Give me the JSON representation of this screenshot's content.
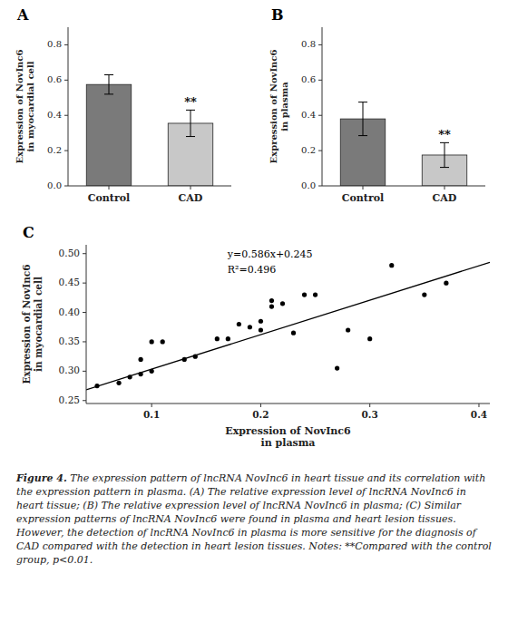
{
  "chart_data": [
    {
      "type": "bar",
      "title": "A",
      "categories": [
        "Control",
        "CAD"
      ],
      "values": [
        0.575,
        0.355
      ],
      "errors": [
        0.055,
        0.075
      ],
      "colors": [
        "#7a7a7a",
        "#c8c8c8"
      ],
      "ylabel": "Expression of NovInc6\nin myocardial cell",
      "ylim": [
        0.0,
        0.9
      ],
      "yticks": [
        {
          "value": 0.0,
          "label": "0.0"
        },
        0.2,
        0.4,
        0.6,
        0.8
      ],
      "grid": false,
      "annotations": [
        {
          "text": "**",
          "category": "CAD"
        }
      ]
    },
    {
      "type": "bar",
      "title": "B",
      "categories": [
        "Control",
        "CAD"
      ],
      "values": [
        0.38,
        0.175
      ],
      "errors": [
        0.095,
        0.07
      ],
      "colors": [
        "#7a7a7a",
        "#c8c8c8"
      ],
      "ylabel": "Expression of NovInc6\nin plasma",
      "ylim": [
        0.0,
        0.9
      ],
      "yticks": [
        {
          "value": 0.0,
          "label": "0.0"
        },
        0.2,
        0.4,
        0.6,
        0.8
      ],
      "grid": false,
      "annotations": [
        {
          "text": "**",
          "category": "CAD"
        }
      ]
    },
    {
      "type": "scatter",
      "title": "C",
      "series": [
        {
          "type": "scatter",
          "color": "#000000",
          "x": [
            0.05,
            0.07,
            0.08,
            0.09,
            0.09,
            0.1,
            0.1,
            0.11,
            0.13,
            0.14,
            0.16,
            0.17,
            0.18,
            0.19,
            0.2,
            0.2,
            0.21,
            0.21,
            0.22,
            0.23,
            0.24,
            0.25,
            0.27,
            0.28,
            0.3,
            0.32,
            0.35,
            0.37
          ],
          "values": [
            0.275,
            0.28,
            0.29,
            0.295,
            0.32,
            0.3,
            0.35,
            0.35,
            0.32,
            0.325,
            0.355,
            0.355,
            0.38,
            0.375,
            0.37,
            0.385,
            0.41,
            0.42,
            0.415,
            0.365,
            0.43,
            0.43,
            0.305,
            0.37,
            0.355,
            0.48,
            0.43,
            0.45
          ]
        },
        {
          "type": "line",
          "color": "#000000",
          "x": [
            0.04,
            0.41
          ],
          "values": [
            0.26844,
            0.48526
          ]
        }
      ],
      "xlabel": "Expression of NovInc6\nin plasma",
      "ylabel": "Expression of NovInc6\nin myocardial cell",
      "xlim": [
        0.04,
        0.41
      ],
      "ylim": [
        0.245,
        0.515
      ],
      "xticks": [
        0.1,
        0.2,
        0.3,
        0.4
      ],
      "yticks": [
        0.25,
        {
          "value": 0.3,
          "label": "0.30"
        },
        0.35,
        {
          "value": 0.4,
          "label": "0.40"
        },
        0.45,
        {
          "value": 0.5,
          "label": "0.50"
        }
      ],
      "grid": false,
      "annotations": [
        {
          "text": "y=0.586x+0.245"
        },
        {
          "text": "R²=0.496"
        }
      ]
    }
  ],
  "caption": {
    "label": "Figure 4.",
    "text": "The expression pattern of lncRNA NovInc6 in heart tissue and its correlation with the expression pattern in plasma. (A) The relative expression level of lncRNA NovInc6 in heart tissue; (B) The relative expression level of lncRNA NovInc6 in plasma; (C) Similar expression patterns of lncRNA NovInc6 were found in plasma and heart lesion tissues. However, the detection of lncRNA NovInc6 in plasma is more sensitive for the diagnosis of CAD compared with the detection in heart lesion tissues. Notes: **Compared with the control group, p<0.01."
  }
}
